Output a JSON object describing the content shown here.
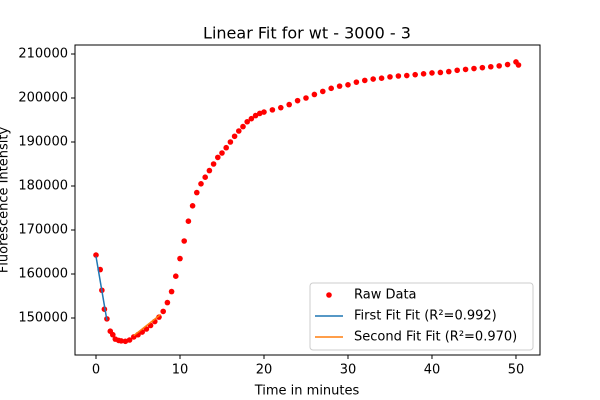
{
  "chart_data": {
    "type": "scatter",
    "title": "Linear Fit for wt - 3000 - 3",
    "x_label": "Time in minutes",
    "y_label": "Fluorescence Intensity",
    "xlim": [
      -2.5,
      52.86
    ],
    "ylim": [
      141590,
      212045
    ],
    "xticks": [
      0,
      10,
      20,
      30,
      40,
      50
    ],
    "yticks": [
      150000,
      160000,
      170000,
      180000,
      190000,
      200000,
      210000
    ],
    "legend": "lower right",
    "series": [
      {
        "name": "Raw Data",
        "kind": "scatter",
        "color": "#ff0000",
        "x": [
          0,
          0.5,
          0.7,
          1.0,
          1.3,
          1.7,
          2.0,
          2.3,
          2.7,
          3.0,
          3.5,
          4.0,
          4.5,
          5.0,
          5.5,
          6.0,
          6.5,
          7.0,
          7.5,
          8.0,
          8.5,
          9.0,
          9.5,
          10.0,
          10.5,
          11.0,
          11.5,
          12.0,
          12.5,
          13.0,
          13.5,
          14.0,
          14.5,
          15.0,
          15.5,
          16.0,
          16.5,
          17.0,
          17.5,
          18.0,
          18.5,
          19.0,
          19.5,
          20.0,
          21,
          22,
          23,
          24,
          25,
          26,
          27,
          28,
          29,
          30,
          31,
          32,
          33,
          34,
          35,
          36,
          37,
          38,
          39,
          40,
          41,
          42,
          43,
          44,
          45,
          46,
          47,
          48,
          49,
          50,
          50.3
        ],
        "values": [
          164300,
          161000,
          156300,
          152000,
          149800,
          147000,
          146200,
          145200,
          144900,
          144800,
          144700,
          145000,
          145700,
          146200,
          146800,
          147500,
          148300,
          149200,
          150200,
          151500,
          153500,
          156000,
          159500,
          163500,
          167500,
          172000,
          175500,
          178500,
          180500,
          182000,
          183500,
          185000,
          186500,
          187500,
          188700,
          190000,
          191300,
          192500,
          193500,
          194600,
          195300,
          196000,
          196500,
          196800,
          197300,
          197800,
          198500,
          199400,
          200000,
          200800,
          201500,
          202200,
          202700,
          203000,
          203600,
          204000,
          204300,
          204500,
          204800,
          205000,
          205100,
          205300,
          205500,
          205700,
          205800,
          206000,
          206300,
          206500,
          206700,
          206900,
          207100,
          207300,
          207600,
          208200,
          207500
        ]
      },
      {
        "name": "First Fit Fit (R²=0.992)",
        "kind": "line",
        "color": "#1f77b4",
        "x": [
          0,
          1.3
        ],
        "values": [
          164000,
          149500
        ]
      },
      {
        "name": "Second Fit Fit (R²=0.970)",
        "kind": "line",
        "color": "#ff7f0e",
        "x": [
          4.5,
          7.7
        ],
        "values": [
          146000,
          150800
        ]
      }
    ]
  }
}
